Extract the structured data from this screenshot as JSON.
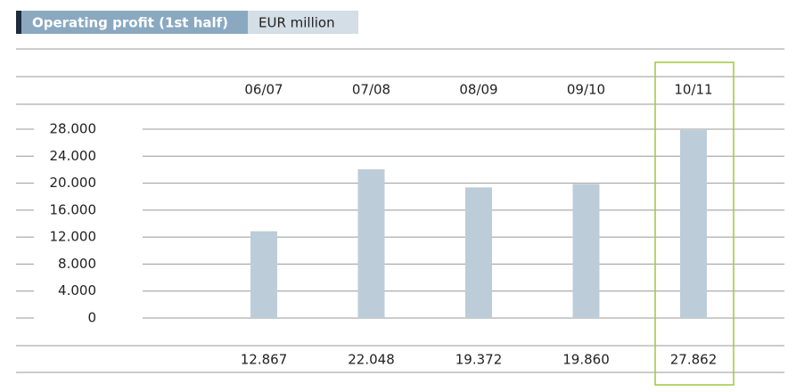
{
  "chart_data": {
    "type": "bar",
    "title": "Operating profit (1st half)",
    "unit": "EUR million",
    "categories": [
      "06/07",
      "07/08",
      "08/09",
      "09/10",
      "10/11"
    ],
    "values": [
      12867,
      22048,
      19372,
      19860,
      27862
    ],
    "value_labels": [
      "12.867",
      "22.048",
      "19.372",
      "19.860",
      "27.862"
    ],
    "color": "#bccdd9",
    "highlight": "10/11",
    "highlight_color": "#9dc93b",
    "ylim": [
      0,
      28000
    ],
    "yticks": [
      {
        "value": 0,
        "label": "0"
      },
      {
        "value": 4000,
        "label": "4.000"
      },
      {
        "value": 8000,
        "label": "8.000"
      },
      {
        "value": 12000,
        "label": "12.000"
      },
      {
        "value": 16000,
        "label": "16.000"
      },
      {
        "value": 20000,
        "label": "20.000"
      },
      {
        "value": 24000,
        "label": "24.000"
      },
      {
        "value": 28000,
        "label": "28.000"
      }
    ],
    "grid": true
  }
}
